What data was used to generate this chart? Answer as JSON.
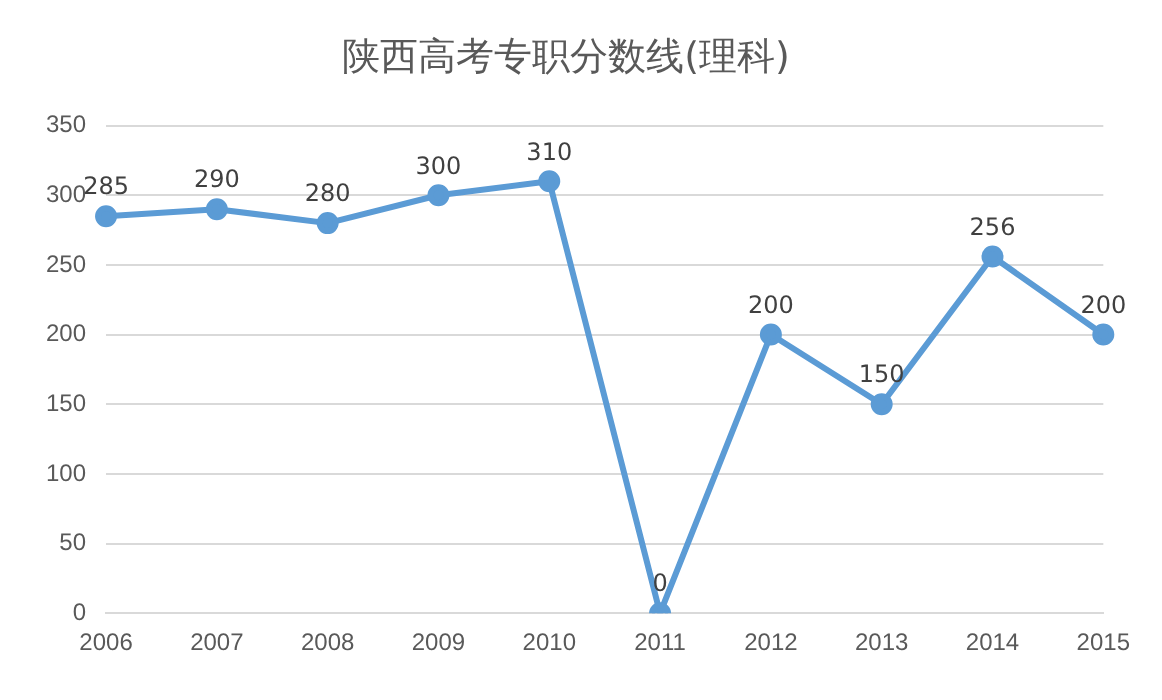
{
  "chart_data": {
    "type": "line",
    "title": "陕西高考专职分数线(理科)",
    "categories": [
      "2006",
      "2007",
      "2008",
      "2009",
      "2010",
      "2011",
      "2012",
      "2013",
      "2014",
      "2015"
    ],
    "series": [
      {
        "color": "#5b9bd5",
        "values": [
          285,
          290,
          280,
          300,
          310,
          0,
          200,
          150,
          256,
          200
        ]
      }
    ],
    "ylim": [
      0,
      350
    ],
    "yticks": [
      0,
      50,
      100,
      150,
      200,
      250,
      300,
      350
    ],
    "grid": "y",
    "legend": false,
    "marker": "circle",
    "line_style": "solid",
    "data_labels": true
  }
}
